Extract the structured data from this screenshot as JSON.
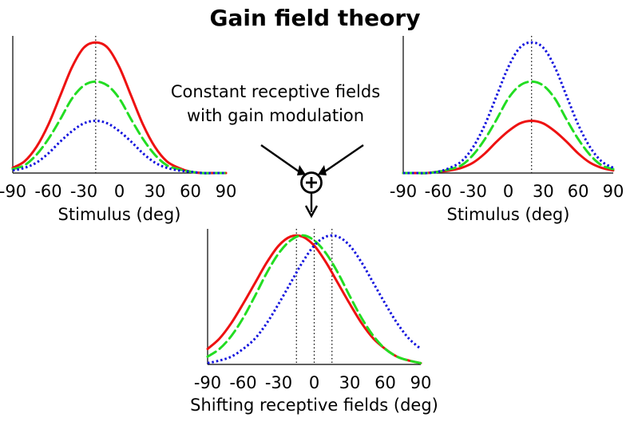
{
  "figure": {
    "title": "Gain field theory",
    "annotation_lines": [
      "Constant receptive fields",
      "with gain modulation"
    ]
  },
  "colors": {
    "red": "#ee1111",
    "green": "#22dd22",
    "blue": "#1111dd",
    "axis": "#000000"
  },
  "chart_data": [
    {
      "type": "line",
      "panel": "top-left",
      "title": "",
      "xlabel": "Stimulus (deg)",
      "ylabel": "",
      "xlim": [
        -90,
        90
      ],
      "xticks": [
        -90,
        -60,
        -30,
        0,
        30,
        60,
        90
      ],
      "ylim": [
        0,
        1.05
      ],
      "vlines": [
        -20
      ],
      "grid": false,
      "legend": "none",
      "x": [
        -90,
        -80,
        -70,
        -60,
        -50,
        -40,
        -30,
        -20,
        -10,
        0,
        10,
        20,
        30,
        40,
        50,
        60,
        70,
        80,
        90
      ],
      "series": [
        {
          "color": "red",
          "style": "solid",
          "values": [
            0.04,
            0.09,
            0.2,
            0.37,
            0.59,
            0.81,
            0.96,
            1.0,
            0.96,
            0.81,
            0.59,
            0.37,
            0.2,
            0.09,
            0.04,
            0.01,
            0.0,
            0.0,
            0.0
          ]
        },
        {
          "color": "green",
          "style": "dashed",
          "values": [
            0.03,
            0.06,
            0.14,
            0.26,
            0.41,
            0.57,
            0.67,
            0.7,
            0.67,
            0.57,
            0.41,
            0.26,
            0.14,
            0.06,
            0.03,
            0.01,
            0.0,
            0.0,
            0.0
          ]
        },
        {
          "color": "blue",
          "style": "dotted",
          "values": [
            0.02,
            0.04,
            0.08,
            0.15,
            0.24,
            0.32,
            0.38,
            0.4,
            0.38,
            0.32,
            0.24,
            0.15,
            0.08,
            0.04,
            0.02,
            0.01,
            0.0,
            0.0,
            0.0
          ]
        }
      ]
    },
    {
      "type": "line",
      "panel": "top-right",
      "title": "",
      "xlabel": "Stimulus (deg)",
      "ylabel": "",
      "xlim": [
        -90,
        90
      ],
      "xticks": [
        -90,
        -60,
        -30,
        0,
        30,
        60,
        90
      ],
      "ylim": [
        0,
        1.05
      ],
      "vlines": [
        20
      ],
      "grid": false,
      "legend": "none",
      "x": [
        -90,
        -80,
        -70,
        -60,
        -50,
        -40,
        -30,
        -20,
        -10,
        0,
        10,
        20,
        30,
        40,
        50,
        60,
        70,
        80,
        90
      ],
      "series": [
        {
          "color": "red",
          "style": "solid",
          "values": [
            0.0,
            0.0,
            0.0,
            0.01,
            0.02,
            0.04,
            0.08,
            0.15,
            0.24,
            0.32,
            0.38,
            0.4,
            0.38,
            0.32,
            0.24,
            0.15,
            0.08,
            0.04,
            0.02
          ]
        },
        {
          "color": "green",
          "style": "dashed",
          "values": [
            0.0,
            0.0,
            0.0,
            0.01,
            0.03,
            0.06,
            0.14,
            0.26,
            0.41,
            0.57,
            0.67,
            0.7,
            0.67,
            0.57,
            0.41,
            0.26,
            0.14,
            0.06,
            0.03
          ]
        },
        {
          "color": "blue",
          "style": "dotted",
          "values": [
            0.0,
            0.0,
            0.0,
            0.01,
            0.04,
            0.09,
            0.2,
            0.37,
            0.59,
            0.81,
            0.96,
            1.0,
            0.96,
            0.81,
            0.59,
            0.37,
            0.2,
            0.09,
            0.04
          ]
        }
      ]
    },
    {
      "type": "line",
      "panel": "bottom",
      "title": "",
      "xlabel": "Shifting receptive fields (deg)",
      "ylabel": "",
      "xlim": [
        -90,
        90
      ],
      "xticks": [
        -90,
        -60,
        -30,
        0,
        30,
        60,
        90
      ],
      "ylim": [
        0,
        1.05
      ],
      "vlines": [
        -15,
        0,
        15
      ],
      "grid": false,
      "legend": "none",
      "x": [
        -90,
        -80,
        -70,
        -60,
        -50,
        -40,
        -30,
        -20,
        -10,
        0,
        10,
        20,
        30,
        40,
        50,
        60,
        70,
        80,
        90
      ],
      "series": [
        {
          "color": "red",
          "style": "solid",
          "values": [
            0.12,
            0.2,
            0.32,
            0.47,
            0.63,
            0.79,
            0.92,
            0.99,
            0.99,
            0.92,
            0.79,
            0.63,
            0.47,
            0.32,
            0.2,
            0.12,
            0.06,
            0.03,
            0.01
          ]
        },
        {
          "color": "green",
          "style": "dashed",
          "values": [
            0.06,
            0.12,
            0.22,
            0.36,
            0.53,
            0.71,
            0.86,
            0.96,
            1.0,
            0.96,
            0.86,
            0.71,
            0.53,
            0.36,
            0.22,
            0.12,
            0.06,
            0.03,
            0.01
          ]
        },
        {
          "color": "blue",
          "style": "dotted",
          "values": [
            0.01,
            0.03,
            0.06,
            0.12,
            0.2,
            0.32,
            0.47,
            0.63,
            0.79,
            0.92,
            0.99,
            0.99,
            0.92,
            0.79,
            0.63,
            0.47,
            0.32,
            0.2,
            0.12
          ]
        }
      ]
    }
  ]
}
